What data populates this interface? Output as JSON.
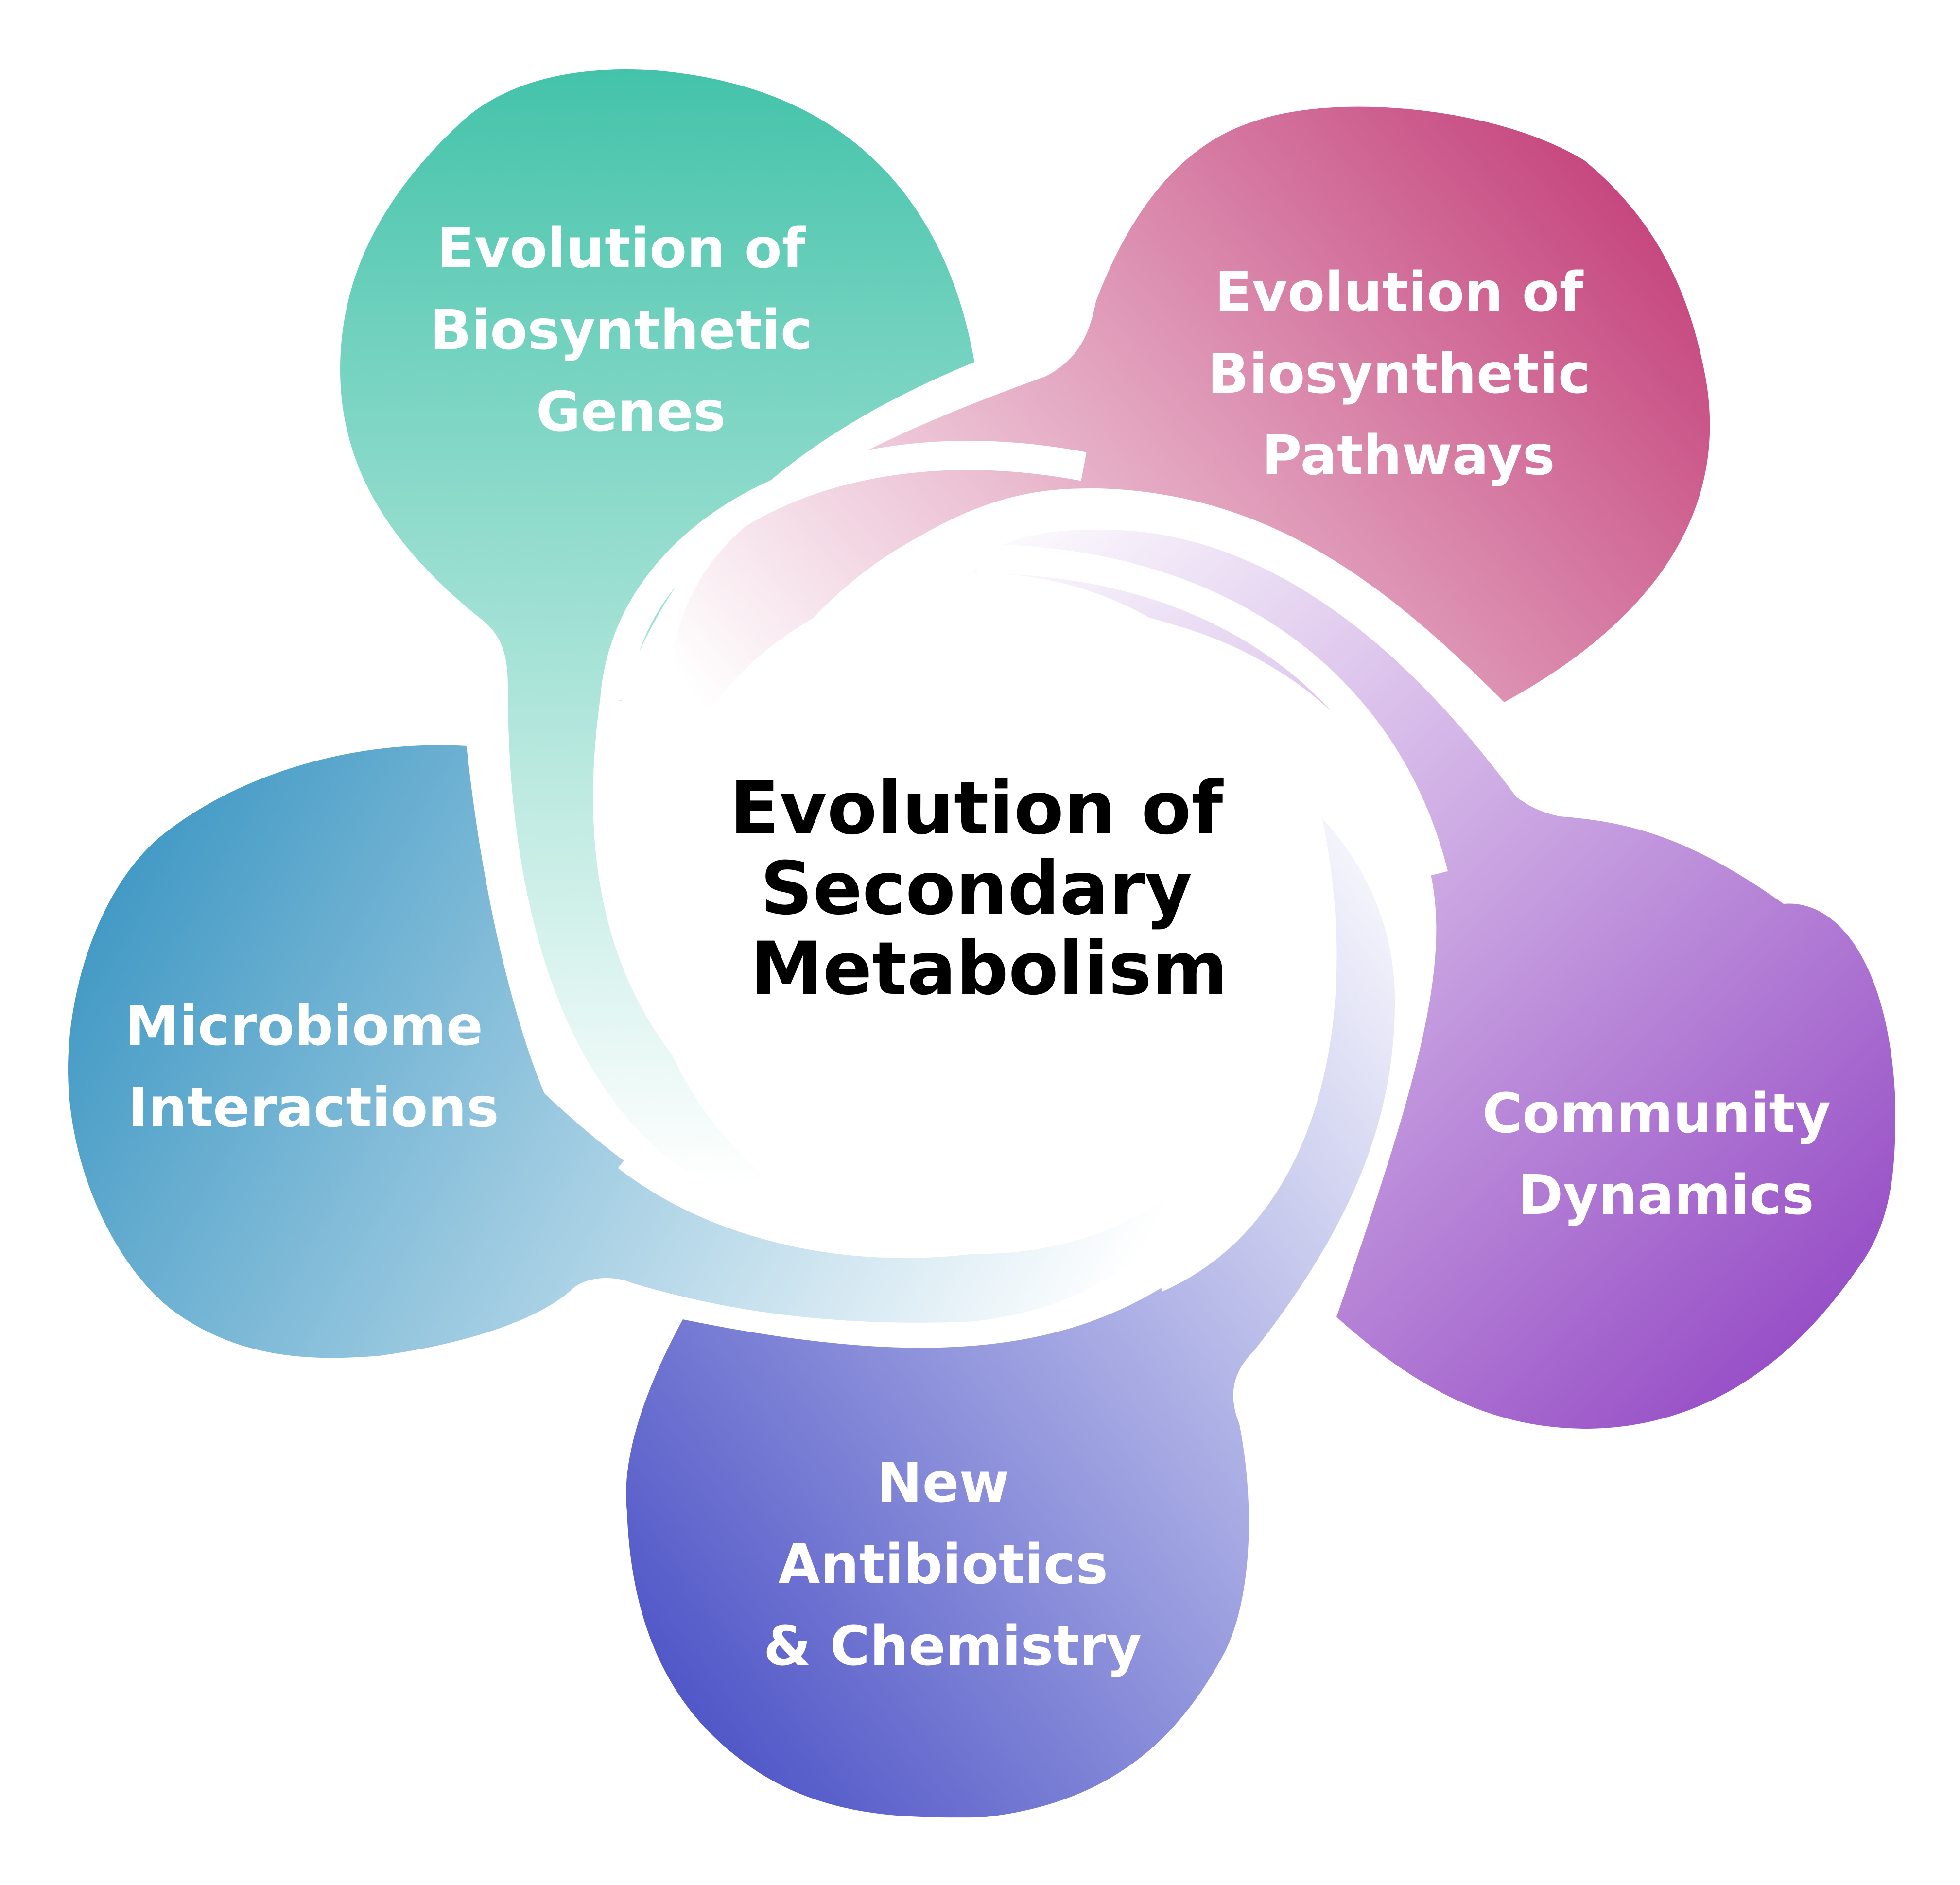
{
  "center": {
    "lines": [
      "Evolution of",
      "Secondary",
      "Metabolism"
    ]
  },
  "petals": [
    {
      "id": "genes",
      "lines": [
        "Evolution of",
        "Biosynthetic",
        "Genes"
      ],
      "color_outer": "#44c3aa",
      "color_inner": "#ffffff"
    },
    {
      "id": "pathways",
      "lines": [
        "Evolution of",
        "Biosynthetic",
        "Pathways"
      ],
      "color_outer": "#c33e78",
      "color_inner": "#ffffff"
    },
    {
      "id": "community",
      "lines": [
        "Community",
        "Dynamics"
      ],
      "color_outer": "#8c3cc0",
      "color_inner": "#ffffff"
    },
    {
      "id": "antibiotics",
      "lines": [
        "New",
        "Antibiotics",
        "& Chemistry"
      ],
      "color_outer": "#3f46c2",
      "color_inner": "#ffffff"
    },
    {
      "id": "microbiome",
      "lines": [
        "Microbiome",
        "Interactions"
      ],
      "color_outer": "#3f98c4",
      "color_inner": "#ffffff"
    }
  ]
}
